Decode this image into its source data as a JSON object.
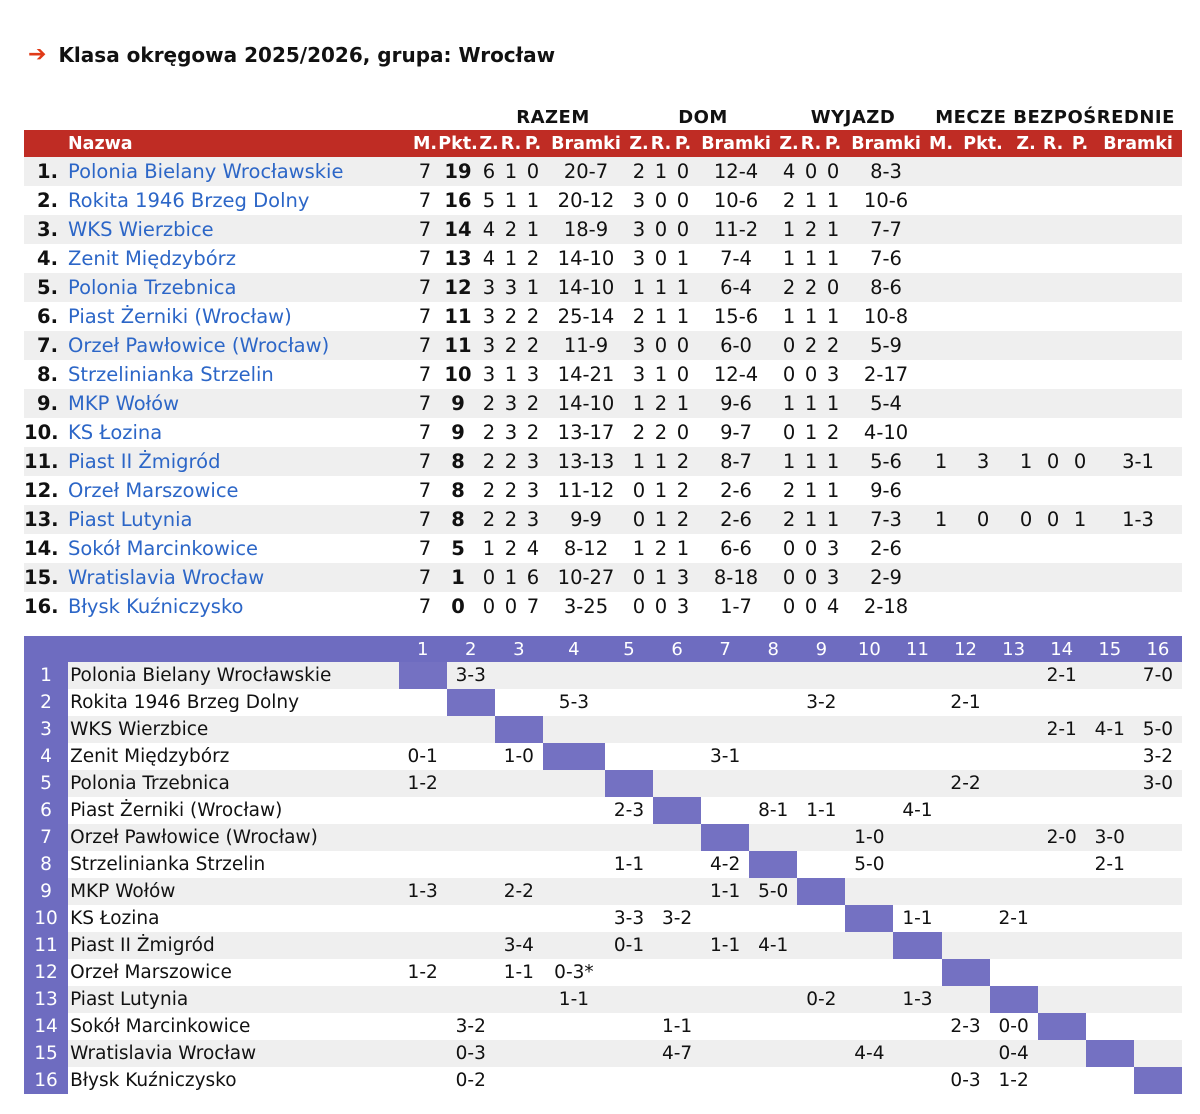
{
  "title": "Klasa okręgowa 2025/2026, grupa: Wrocław",
  "groups": {
    "razem": "RAZEM",
    "dom": "DOM",
    "wyjazd": "WYJAZD",
    "mecze": "MECZE BEZPOŚREDNIE"
  },
  "headers": [
    "Nazwa",
    "M.",
    "Pkt.",
    "Z.",
    "R.",
    "P.",
    "Bramki",
    "Z.",
    "R.",
    "P.",
    "Bramki",
    "Z.",
    "R.",
    "P.",
    "Bramki",
    "M.",
    "Pkt.",
    "Z.",
    "R.",
    "P.",
    "Bramki"
  ],
  "standings": [
    {
      "pos": "1.",
      "team": "Polonia Bielany Wrocławskie",
      "m": "7",
      "pkt": "19",
      "z": "6",
      "r": "1",
      "p": "0",
      "bramki": "20-7",
      "dz": "2",
      "dr": "1",
      "dp": "0",
      "db": "12-4",
      "wz": "4",
      "wr": "0",
      "wp": "0",
      "wb": "8-3",
      "hm": "",
      "hpkt": "",
      "hz": "",
      "hr": "",
      "hp": "",
      "hb": ""
    },
    {
      "pos": "2.",
      "team": "Rokita 1946 Brzeg Dolny",
      "m": "7",
      "pkt": "16",
      "z": "5",
      "r": "1",
      "p": "1",
      "bramki": "20-12",
      "dz": "3",
      "dr": "0",
      "dp": "0",
      "db": "10-6",
      "wz": "2",
      "wr": "1",
      "wp": "1",
      "wb": "10-6",
      "hm": "",
      "hpkt": "",
      "hz": "",
      "hr": "",
      "hp": "",
      "hb": ""
    },
    {
      "pos": "3.",
      "team": "WKS Wierzbice",
      "m": "7",
      "pkt": "14",
      "z": "4",
      "r": "2",
      "p": "1",
      "bramki": "18-9",
      "dz": "3",
      "dr": "0",
      "dp": "0",
      "db": "11-2",
      "wz": "1",
      "wr": "2",
      "wp": "1",
      "wb": "7-7",
      "hm": "",
      "hpkt": "",
      "hz": "",
      "hr": "",
      "hp": "",
      "hb": ""
    },
    {
      "pos": "4.",
      "team": "Zenit Międzybórz",
      "m": "7",
      "pkt": "13",
      "z": "4",
      "r": "1",
      "p": "2",
      "bramki": "14-10",
      "dz": "3",
      "dr": "0",
      "dp": "1",
      "db": "7-4",
      "wz": "1",
      "wr": "1",
      "wp": "1",
      "wb": "7-6",
      "hm": "",
      "hpkt": "",
      "hz": "",
      "hr": "",
      "hp": "",
      "hb": ""
    },
    {
      "pos": "5.",
      "team": "Polonia Trzebnica",
      "m": "7",
      "pkt": "12",
      "z": "3",
      "r": "3",
      "p": "1",
      "bramki": "14-10",
      "dz": "1",
      "dr": "1",
      "dp": "1",
      "db": "6-4",
      "wz": "2",
      "wr": "2",
      "wp": "0",
      "wb": "8-6",
      "hm": "",
      "hpkt": "",
      "hz": "",
      "hr": "",
      "hp": "",
      "hb": ""
    },
    {
      "pos": "6.",
      "team": "Piast Żerniki (Wrocław)",
      "m": "7",
      "pkt": "11",
      "z": "3",
      "r": "2",
      "p": "2",
      "bramki": "25-14",
      "dz": "2",
      "dr": "1",
      "dp": "1",
      "db": "15-6",
      "wz": "1",
      "wr": "1",
      "wp": "1",
      "wb": "10-8",
      "hm": "",
      "hpkt": "",
      "hz": "",
      "hr": "",
      "hp": "",
      "hb": ""
    },
    {
      "pos": "7.",
      "team": "Orzeł Pawłowice (Wrocław)",
      "m": "7",
      "pkt": "11",
      "z": "3",
      "r": "2",
      "p": "2",
      "bramki": "11-9",
      "dz": "3",
      "dr": "0",
      "dp": "0",
      "db": "6-0",
      "wz": "0",
      "wr": "2",
      "wp": "2",
      "wb": "5-9",
      "hm": "",
      "hpkt": "",
      "hz": "",
      "hr": "",
      "hp": "",
      "hb": ""
    },
    {
      "pos": "8.",
      "team": "Strzelinianka Strzelin",
      "m": "7",
      "pkt": "10",
      "z": "3",
      "r": "1",
      "p": "3",
      "bramki": "14-21",
      "dz": "3",
      "dr": "1",
      "dp": "0",
      "db": "12-4",
      "wz": "0",
      "wr": "0",
      "wp": "3",
      "wb": "2-17",
      "hm": "",
      "hpkt": "",
      "hz": "",
      "hr": "",
      "hp": "",
      "hb": ""
    },
    {
      "pos": "9.",
      "team": "MKP Wołów",
      "m": "7",
      "pkt": "9",
      "z": "2",
      "r": "3",
      "p": "2",
      "bramki": "14-10",
      "dz": "1",
      "dr": "2",
      "dp": "1",
      "db": "9-6",
      "wz": "1",
      "wr": "1",
      "wp": "1",
      "wb": "5-4",
      "hm": "",
      "hpkt": "",
      "hz": "",
      "hr": "",
      "hp": "",
      "hb": ""
    },
    {
      "pos": "10.",
      "team": "KS Łozina",
      "m": "7",
      "pkt": "9",
      "z": "2",
      "r": "3",
      "p": "2",
      "bramki": "13-17",
      "dz": "2",
      "dr": "2",
      "dp": "0",
      "db": "9-7",
      "wz": "0",
      "wr": "1",
      "wp": "2",
      "wb": "4-10",
      "hm": "",
      "hpkt": "",
      "hz": "",
      "hr": "",
      "hp": "",
      "hb": ""
    },
    {
      "pos": "11.",
      "team": "Piast II Żmigród",
      "m": "7",
      "pkt": "8",
      "z": "2",
      "r": "2",
      "p": "3",
      "bramki": "13-13",
      "dz": "1",
      "dr": "1",
      "dp": "2",
      "db": "8-7",
      "wz": "1",
      "wr": "1",
      "wp": "1",
      "wb": "5-6",
      "hm": "1",
      "hpkt": "3",
      "hz": "1",
      "hr": "0",
      "hp": "0",
      "hb": "3-1"
    },
    {
      "pos": "12.",
      "team": "Orzeł Marszowice",
      "m": "7",
      "pkt": "8",
      "z": "2",
      "r": "2",
      "p": "3",
      "bramki": "11-12",
      "dz": "0",
      "dr": "1",
      "dp": "2",
      "db": "2-6",
      "wz": "2",
      "wr": "1",
      "wp": "1",
      "wb": "9-6",
      "hm": "",
      "hpkt": "",
      "hz": "",
      "hr": "",
      "hp": "",
      "hb": ""
    },
    {
      "pos": "13.",
      "team": "Piast Lutynia",
      "m": "7",
      "pkt": "8",
      "z": "2",
      "r": "2",
      "p": "3",
      "bramki": "9-9",
      "dz": "0",
      "dr": "1",
      "dp": "2",
      "db": "2-6",
      "wz": "2",
      "wr": "1",
      "wp": "1",
      "wb": "7-3",
      "hm": "1",
      "hpkt": "0",
      "hz": "0",
      "hr": "0",
      "hp": "1",
      "hb": "1-3"
    },
    {
      "pos": "14.",
      "team": "Sokół Marcinkowice",
      "m": "7",
      "pkt": "5",
      "z": "1",
      "r": "2",
      "p": "4",
      "bramki": "8-12",
      "dz": "1",
      "dr": "2",
      "dp": "1",
      "db": "6-6",
      "wz": "0",
      "wr": "0",
      "wp": "3",
      "wb": "2-6",
      "hm": "",
      "hpkt": "",
      "hz": "",
      "hr": "",
      "hp": "",
      "hb": ""
    },
    {
      "pos": "15.",
      "team": "Wratislavia Wrocław",
      "m": "7",
      "pkt": "1",
      "z": "0",
      "r": "1",
      "p": "6",
      "bramki": "10-27",
      "dz": "0",
      "dr": "1",
      "dp": "3",
      "db": "8-18",
      "wz": "0",
      "wr": "0",
      "wp": "3",
      "wb": "2-9",
      "hm": "",
      "hpkt": "",
      "hz": "",
      "hr": "",
      "hp": "",
      "hb": ""
    },
    {
      "pos": "16.",
      "team": "Błysk Kuźniczysko",
      "m": "7",
      "pkt": "0",
      "z": "0",
      "r": "0",
      "p": "7",
      "bramki": "3-25",
      "dz": "0",
      "dr": "0",
      "dp": "3",
      "db": "1-7",
      "wz": "0",
      "wr": "0",
      "wp": "4",
      "wb": "2-18",
      "hm": "",
      "hpkt": "",
      "hz": "",
      "hr": "",
      "hp": "",
      "hb": ""
    }
  ],
  "matrix": {
    "cols": [
      "1",
      "2",
      "3",
      "4",
      "5",
      "6",
      "7",
      "8",
      "9",
      "10",
      "11",
      "12",
      "13",
      "14",
      "15",
      "16"
    ],
    "rows": [
      {
        "n": "1",
        "team": "Polonia Bielany Wrocławskie",
        "cells": [
          "",
          "3-3",
          "",
          "",
          "",
          "",
          "",
          "",
          "",
          "",
          "",
          "",
          "",
          "2-1",
          "",
          "7-0"
        ]
      },
      {
        "n": "2",
        "team": "Rokita 1946 Brzeg Dolny",
        "cells": [
          "",
          "",
          "",
          "5-3",
          "",
          "",
          "",
          "",
          "3-2",
          "",
          "",
          "2-1",
          "",
          "",
          "",
          ""
        ]
      },
      {
        "n": "3",
        "team": "WKS Wierzbice",
        "cells": [
          "",
          "",
          "",
          "",
          "",
          "",
          "",
          "",
          "",
          "",
          "",
          "",
          "",
          "2-1",
          "4-1",
          "5-0"
        ]
      },
      {
        "n": "4",
        "team": "Zenit Międzybórz",
        "cells": [
          "0-1",
          "",
          "1-0",
          "",
          "",
          "",
          "3-1",
          "",
          "",
          "",
          "",
          "",
          "",
          "",
          "",
          "3-2"
        ]
      },
      {
        "n": "5",
        "team": "Polonia Trzebnica",
        "cells": [
          "1-2",
          "",
          "",
          "",
          "",
          "",
          "",
          "",
          "",
          "",
          "",
          "2-2",
          "",
          "",
          "",
          "3-0"
        ]
      },
      {
        "n": "6",
        "team": "Piast Żerniki (Wrocław)",
        "cells": [
          "",
          "",
          "",
          "",
          "2-3",
          "",
          "",
          "8-1",
          "1-1",
          "",
          "4-1",
          "",
          "",
          "",
          "",
          ""
        ]
      },
      {
        "n": "7",
        "team": "Orzeł Pawłowice (Wrocław)",
        "cells": [
          "",
          "",
          "",
          "",
          "",
          "",
          "",
          "",
          "",
          "1-0",
          "",
          "",
          "",
          "2-0",
          "3-0",
          ""
        ]
      },
      {
        "n": "8",
        "team": "Strzelinianka Strzelin",
        "cells": [
          "",
          "",
          "",
          "",
          "1-1",
          "",
          "4-2",
          "",
          "",
          "5-0",
          "",
          "",
          "",
          "",
          "2-1",
          ""
        ]
      },
      {
        "n": "9",
        "team": "MKP Wołów",
        "cells": [
          "1-3",
          "",
          "2-2",
          "",
          "",
          "",
          "1-1",
          "5-0",
          "",
          "",
          "",
          "",
          "",
          "",
          "",
          ""
        ]
      },
      {
        "n": "10",
        "team": "KS Łozina",
        "cells": [
          "",
          "",
          "",
          "",
          "3-3",
          "3-2",
          "",
          "",
          "",
          "",
          "1-1",
          "",
          "2-1",
          "",
          "",
          ""
        ]
      },
      {
        "n": "11",
        "team": "Piast II Żmigród",
        "cells": [
          "",
          "",
          "3-4",
          "",
          "0-1",
          "",
          "1-1",
          "4-1",
          "",
          "",
          "",
          "",
          "",
          "",
          "",
          ""
        ]
      },
      {
        "n": "12",
        "team": "Orzeł Marszowice",
        "cells": [
          "1-2",
          "",
          "1-1",
          "0-3*",
          "",
          "",
          "",
          "",
          "",
          "",
          "",
          "",
          "",
          "",
          "",
          ""
        ]
      },
      {
        "n": "13",
        "team": "Piast Lutynia",
        "cells": [
          "",
          "",
          "",
          "1-1",
          "",
          "",
          "",
          "",
          "0-2",
          "",
          "1-3",
          "",
          "",
          "",
          "",
          ""
        ]
      },
      {
        "n": "14",
        "team": "Sokół Marcinkowice",
        "cells": [
          "",
          "3-2",
          "",
          "",
          "",
          "1-1",
          "",
          "",
          "",
          "",
          "",
          "2-3",
          "0-0",
          "",
          "",
          ""
        ]
      },
      {
        "n": "15",
        "team": "Wratislavia Wrocław",
        "cells": [
          "",
          "0-3",
          "",
          "",
          "",
          "4-7",
          "",
          "",
          "",
          "4-4",
          "",
          "",
          "0-4",
          "",
          "",
          ""
        ]
      },
      {
        "n": "16",
        "team": "Błysk Kuźniczysko",
        "cells": [
          "",
          "0-2",
          "",
          "",
          "",
          "",
          "",
          "",
          "",
          "",
          "",
          "0-3",
          "1-2",
          "",
          "",
          ""
        ]
      }
    ]
  }
}
